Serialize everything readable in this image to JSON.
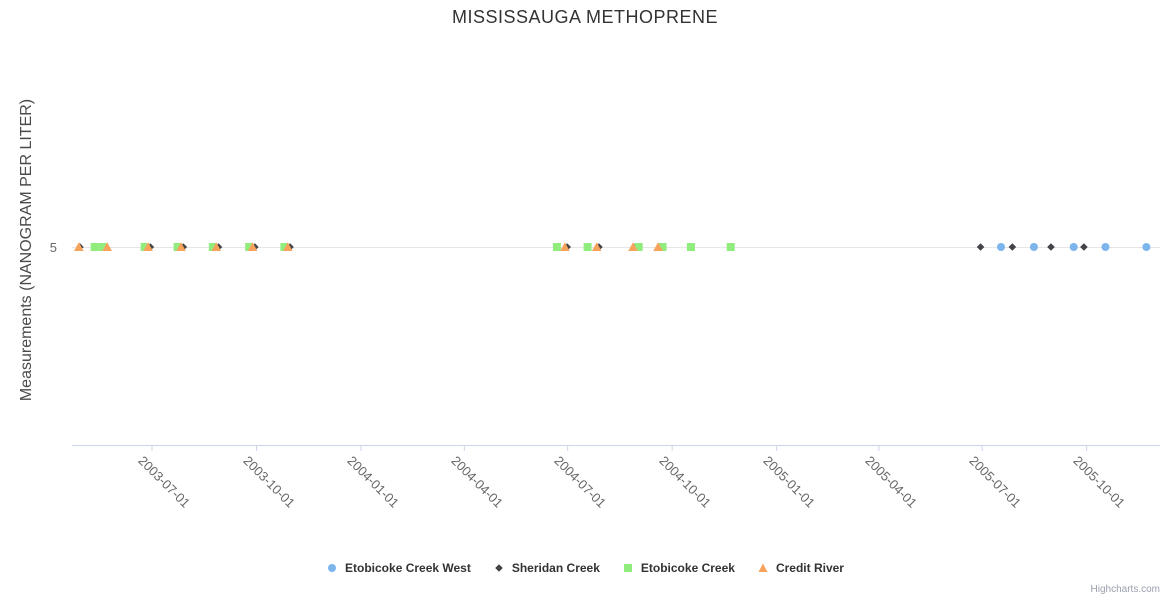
{
  "title": "MISSISSAUGA METHOPRENE",
  "credits_label": "Highcharts.com",
  "chart_data": {
    "type": "scatter",
    "title": "MISSISSAUGA METHOPRENE",
    "xlabel": "",
    "ylabel": "Measurements (NANOGRAM PER LITER)",
    "legend_position": "bottom",
    "grid": "single horizontal gridline at y=5",
    "x_axis": {
      "type": "datetime",
      "min": "2003-04-22",
      "max": "2005-12-05",
      "tick_dates": [
        "2003-07-01",
        "2003-10-01",
        "2004-01-01",
        "2004-04-01",
        "2004-07-01",
        "2004-10-01",
        "2005-01-01",
        "2005-04-01",
        "2005-07-01",
        "2005-10-01"
      ],
      "tick_labels": [
        "2003-07-01",
        "2003-10-01",
        "2004-01-01",
        "2004-04-01",
        "2004-07-01",
        "2004-10-01",
        "2005-01-01",
        "2005-04-01",
        "2005-07-01",
        "2005-10-01"
      ],
      "label_rotation_deg": 45
    },
    "y_axis": {
      "min": 0,
      "max": 10,
      "ticks": [
        5
      ],
      "tick_labels": [
        "5"
      ]
    },
    "series": [
      {
        "name": "Etobicoke Creek West",
        "marker": "circle",
        "color": "#7cb5ec",
        "value": 5,
        "dates": [
          "2005-07-18",
          "2005-08-16",
          "2005-09-20",
          "2005-10-18",
          "2005-11-23"
        ]
      },
      {
        "name": "Sheridan Creek",
        "marker": "diamond",
        "color": "#434348",
        "value": 5,
        "dates": [
          "2003-04-29",
          "2003-06-30",
          "2003-07-29",
          "2003-08-29",
          "2003-09-30",
          "2003-10-31",
          "2004-07-01",
          "2004-07-29",
          "2004-08-30",
          "2004-09-21",
          "2005-06-30",
          "2005-07-28",
          "2005-08-31",
          "2005-09-29"
        ]
      },
      {
        "name": "Etobicoke Creek",
        "marker": "square",
        "color": "#90ed7d",
        "value": 5,
        "dates": [
          "2003-05-12",
          "2003-05-19",
          "2003-06-25",
          "2003-07-24",
          "2003-08-24",
          "2003-09-25",
          "2003-10-26",
          "2004-06-22",
          "2004-07-19",
          "2004-09-02",
          "2004-09-23",
          "2004-10-18",
          "2004-11-22"
        ]
      },
      {
        "name": "Credit River",
        "marker": "triangle",
        "color": "#f7a35c",
        "value": 5,
        "dates": [
          "2003-04-28",
          "2003-05-23",
          "2003-06-28",
          "2003-07-27",
          "2003-08-27",
          "2003-09-28",
          "2003-10-29",
          "2004-06-29",
          "2004-07-27",
          "2004-08-28",
          "2004-09-19"
        ]
      }
    ]
  }
}
